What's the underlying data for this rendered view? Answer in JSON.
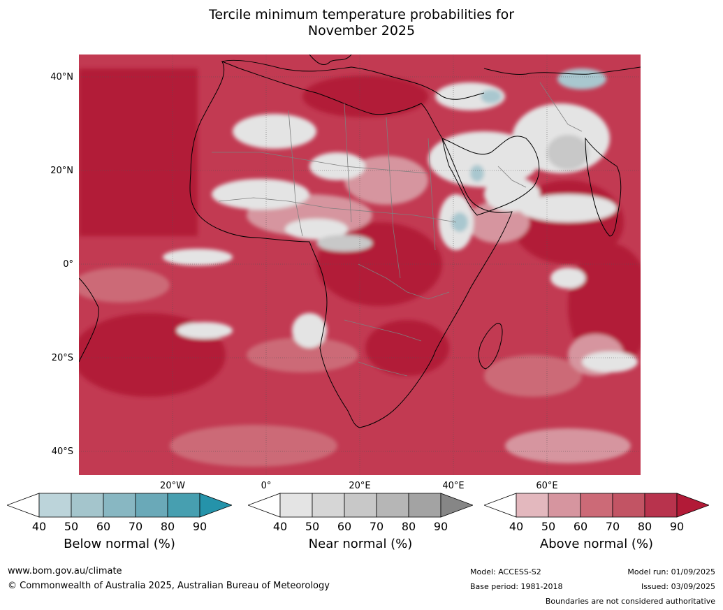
{
  "title": {
    "line1": "Tercile minimum temperature probabilities for",
    "line2": "November 2025"
  },
  "map": {
    "lat_labels": [
      "40°N",
      "20°N",
      "0°",
      "20°S",
      "40°S"
    ],
    "lon_labels": [
      "20°W",
      "0°",
      "20°E",
      "40°E",
      "60°E"
    ],
    "colors": {
      "ocean_base": "#c23a52",
      "above_90": "#b21a37",
      "above_80": "#c0384f",
      "above_70": "#cc6a77",
      "above_60": "#d6959f",
      "above_50": "#e3b8be",
      "near_50": "#e4e4e4",
      "near_70": "#c8c8c8",
      "below_50": "#a9c7cf",
      "coast": "#000000",
      "border": "#7f7f7f"
    }
  },
  "legends": [
    {
      "name": "below-normal",
      "caption": "Below normal (%)",
      "ticks": [
        "40",
        "50",
        "60",
        "70",
        "80",
        "90"
      ],
      "colors": [
        "#ffffff",
        "#bcd4da",
        "#a4c5cc",
        "#88b7c2",
        "#6aa9b8",
        "#479fb0",
        "#2593aa"
      ]
    },
    {
      "name": "near-normal",
      "caption": "Near normal (%)",
      "ticks": [
        "40",
        "50",
        "60",
        "70",
        "80",
        "90"
      ],
      "colors": [
        "#ffffff",
        "#e4e4e4",
        "#d6d6d6",
        "#c8c8c8",
        "#b6b6b6",
        "#a3a3a3",
        "#868686"
      ]
    },
    {
      "name": "above-normal",
      "caption": "Above normal (%)",
      "ticks": [
        "40",
        "50",
        "60",
        "70",
        "80",
        "90"
      ],
      "colors": [
        "#ffffff",
        "#e3b8be",
        "#d6959f",
        "#cc6a77",
        "#c25464",
        "#b8334d",
        "#b21a37"
      ]
    }
  ],
  "footer": {
    "website": "www.bom.gov.au/climate",
    "copyright": "© Commonwealth of Australia 2025, Australian Bureau of Meteorology",
    "model": "Model: ACCESS-S2",
    "base_period": "Base period: 1981-2018",
    "model_run": "Model run: 01/09/2025",
    "issued": "Issued: 03/09/2025",
    "disclaimer": "Boundaries are not considered authoritative"
  }
}
